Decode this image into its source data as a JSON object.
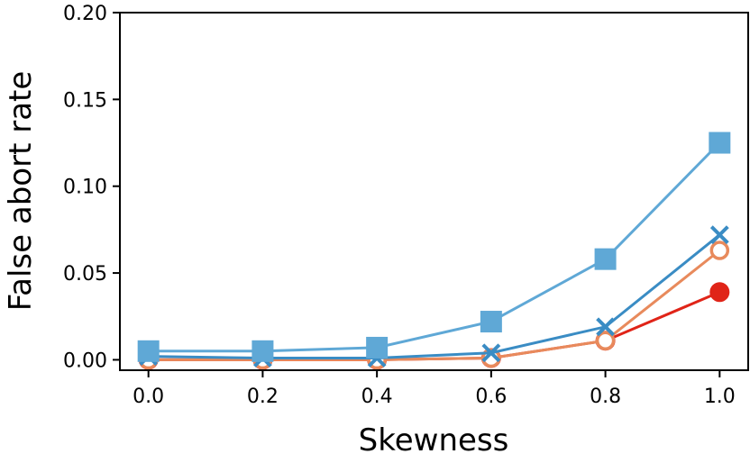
{
  "chart_data": {
    "type": "line",
    "title": "",
    "xlabel": "Skewness",
    "ylabel": "False abort rate",
    "x": [
      0.0,
      0.2,
      0.4,
      0.6,
      0.8,
      1.0
    ],
    "xticks": [
      "0.0",
      "0.2",
      "0.4",
      "0.6",
      "0.8",
      "1.0"
    ],
    "yticks": [
      "0.00",
      "0.05",
      "0.10",
      "0.15",
      "0.20"
    ],
    "xlim": [
      -0.05,
      1.05
    ],
    "ylim": [
      -0.006,
      0.2
    ],
    "grid": false,
    "series": [
      {
        "name": "square-series",
        "marker": "square",
        "color": "#5fa8d6",
        "values": [
          0.005,
          0.005,
          0.007,
          0.022,
          0.058,
          0.125
        ]
      },
      {
        "name": "cross-series",
        "marker": "x",
        "color": "#3a8cc4",
        "values": [
          0.002,
          0.001,
          0.001,
          0.004,
          0.019,
          0.072
        ]
      },
      {
        "name": "open-circle-series",
        "marker": "open-circle",
        "color": "#e88a5c",
        "values": [
          0.0,
          0.0,
          0.0,
          0.001,
          0.011,
          0.063
        ]
      },
      {
        "name": "filled-circle-series",
        "marker": "filled-circle",
        "color": "#e02418",
        "values": [
          0.0,
          0.0,
          0.0,
          0.001,
          0.011,
          0.039
        ]
      }
    ]
  }
}
